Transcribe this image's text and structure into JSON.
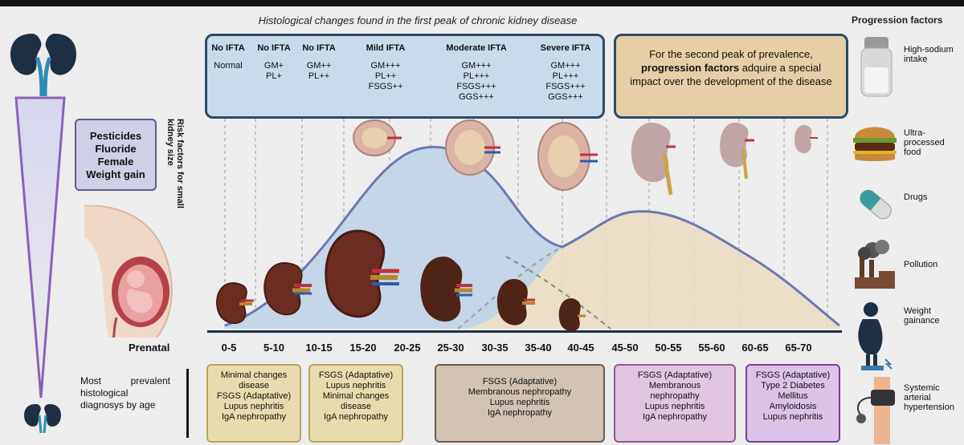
{
  "title": "Histological changes found in the first peak of chronic kidney disease",
  "progression_title": "Progression factors",
  "ifta_columns": [
    {
      "header": "No IFTA",
      "values": [
        "Normal"
      ]
    },
    {
      "header": "No IFTA",
      "values": [
        "GM+",
        "PL+"
      ]
    },
    {
      "header": "No IFTA",
      "values": [
        "GM++",
        "PL++"
      ]
    },
    {
      "header": "Mild IFTA",
      "values": [
        "GM+++",
        "PL++",
        "FSGS++"
      ]
    },
    {
      "header": "Moderate IFTA",
      "values": [
        "GM+++",
        "PL+++",
        "FSGS+++",
        "GGS+++"
      ]
    },
    {
      "header": "Severe IFTA",
      "values": [
        "GM+++",
        "PL+++",
        "FSGS+++",
        "GGS+++"
      ]
    }
  ],
  "second_peak": {
    "pre": "For the second peak of prevalence,",
    "bold": "progression factors",
    "post": "adquire a special impact over the development of the disease"
  },
  "risk_factors": [
    "Pesticides",
    "Fluoride",
    "Female",
    "Weight gain"
  ],
  "risk_label": "Risk factors for small kidney size",
  "prenatal": "Prenatal",
  "ages": [
    "0-5",
    "5-10",
    "10-15",
    "15-20",
    "20-25",
    "25-30",
    "30-35",
    "35-40",
    "40-45",
    "45-50",
    "50-55",
    "55-60",
    "60-65",
    "65-70"
  ],
  "most_prevalent": "Most prevalent histological diagnosys by age",
  "diagnoses": [
    {
      "lines": [
        "Minimal changes",
        "disease",
        "FSGS (Adaptative)",
        "Lupus nephritis",
        "IgA nephropathy"
      ],
      "color": "#e8dcae",
      "border": "#b9a55a"
    },
    {
      "lines": [
        "FSGS (Adaptative)",
        "Lupus nephritis",
        "Minimal changes",
        "disease",
        "IgA nephropathy"
      ],
      "color": "#e8dcae",
      "border": "#b9a55a"
    },
    {
      "lines": [
        "FSGS (Adaptative)",
        "Membranous nephropathy",
        "Lupus nephritis",
        "IgA nephropathy"
      ],
      "color": "#d2c2b3",
      "border": "#6f5a4a"
    },
    {
      "lines": [
        "FSGS (Adaptative)",
        "Membranous",
        "nephropathy",
        "Lupus nephritis",
        "IgA nephropathy"
      ],
      "color": "#e0c6e0",
      "border": "#8e5a8e"
    },
    {
      "lines": [
        "FSGS (Adaptative)",
        "Type 2 Diabetes",
        "Mellitus",
        "Amyloidosis",
        "Lupus nephritis"
      ],
      "color": "#dcc3e6",
      "border": "#7a3f9a"
    }
  ],
  "progression_factors": [
    "High-sodium intake",
    "Ultra-processed food",
    "Drugs",
    "Pollution",
    "Weight gainance",
    "Systemic arterial hypertension"
  ],
  "colors": {
    "blue_curve": "#6c78b0",
    "blue_fill": "#bfd3e6",
    "tan_fill": "#eadcc0",
    "dark_kidney": "#5a2a20"
  }
}
